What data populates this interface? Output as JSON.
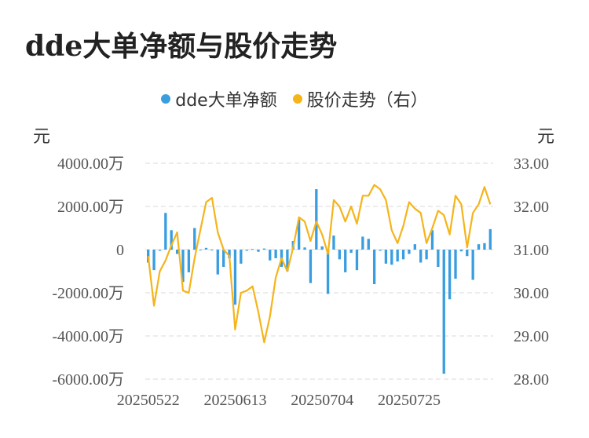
{
  "title": "dde大单净额与股价走势",
  "legend": {
    "series1": "dde大单净额",
    "series2": "股价走势（右）"
  },
  "left_unit": "元",
  "right_unit": "元",
  "colors": {
    "bar": "#3a9de0",
    "line": "#f5b41a",
    "grid": "#e6e6e6",
    "title": "#222222"
  },
  "chart_data": {
    "type": "bar",
    "title": "dde大单净额与股价走势",
    "xlabel": "",
    "ylabel": "元",
    "y2label": "元",
    "ylim": [
      -6000,
      4000
    ],
    "y2lim": [
      28,
      33
    ],
    "yticks": [
      "4000.00万",
      "2000.00万",
      "0",
      "-2000.00万",
      "-4000.00万",
      "-6000.00万"
    ],
    "y2ticks": [
      "33.00",
      "32.00",
      "31.00",
      "30.00",
      "29.00",
      "28.00"
    ],
    "xticks": [
      "20250522",
      "20250613",
      "20250704",
      "20250725"
    ],
    "grid": true,
    "legend_position": "top",
    "series": [
      {
        "name": "dde大单净额",
        "type": "bar",
        "axis": "left",
        "values": [
          -600,
          -950,
          -50,
          1700,
          900,
          -200,
          -1500,
          -1050,
          1000,
          -30,
          80,
          -30,
          -1150,
          -800,
          -400,
          -2550,
          -650,
          -50,
          30,
          -100,
          50,
          -500,
          -400,
          -800,
          -1000,
          400,
          1400,
          100,
          -1550,
          2800,
          150,
          -2050,
          650,
          -450,
          -1050,
          -150,
          -950,
          600,
          500,
          -1600,
          -50,
          -650,
          -700,
          -550,
          -450,
          -200,
          250,
          -600,
          -450,
          900,
          -800,
          -5750,
          -2300,
          -1350,
          -80,
          -300,
          -1400,
          250,
          300,
          950
        ]
      },
      {
        "name": "股价走势（右）",
        "type": "line",
        "axis": "right",
        "values": [
          30.85,
          29.7,
          30.5,
          30.75,
          31.1,
          31.4,
          30.05,
          30.0,
          30.8,
          31.45,
          32.1,
          32.2,
          31.4,
          31.0,
          30.85,
          29.15,
          30.0,
          30.05,
          30.15,
          29.55,
          28.85,
          29.45,
          30.35,
          30.8,
          30.5,
          31.05,
          31.75,
          31.65,
          31.2,
          31.65,
          31.35,
          30.9,
          32.15,
          32.0,
          31.65,
          32.0,
          31.6,
          32.25,
          32.25,
          32.5,
          32.4,
          32.15,
          31.45,
          31.15,
          31.55,
          32.1,
          31.95,
          31.85,
          31.15,
          31.5,
          31.9,
          31.8,
          31.35,
          32.25,
          32.05,
          31.05,
          31.85,
          32.05,
          32.45,
          32.05
        ]
      }
    ]
  }
}
